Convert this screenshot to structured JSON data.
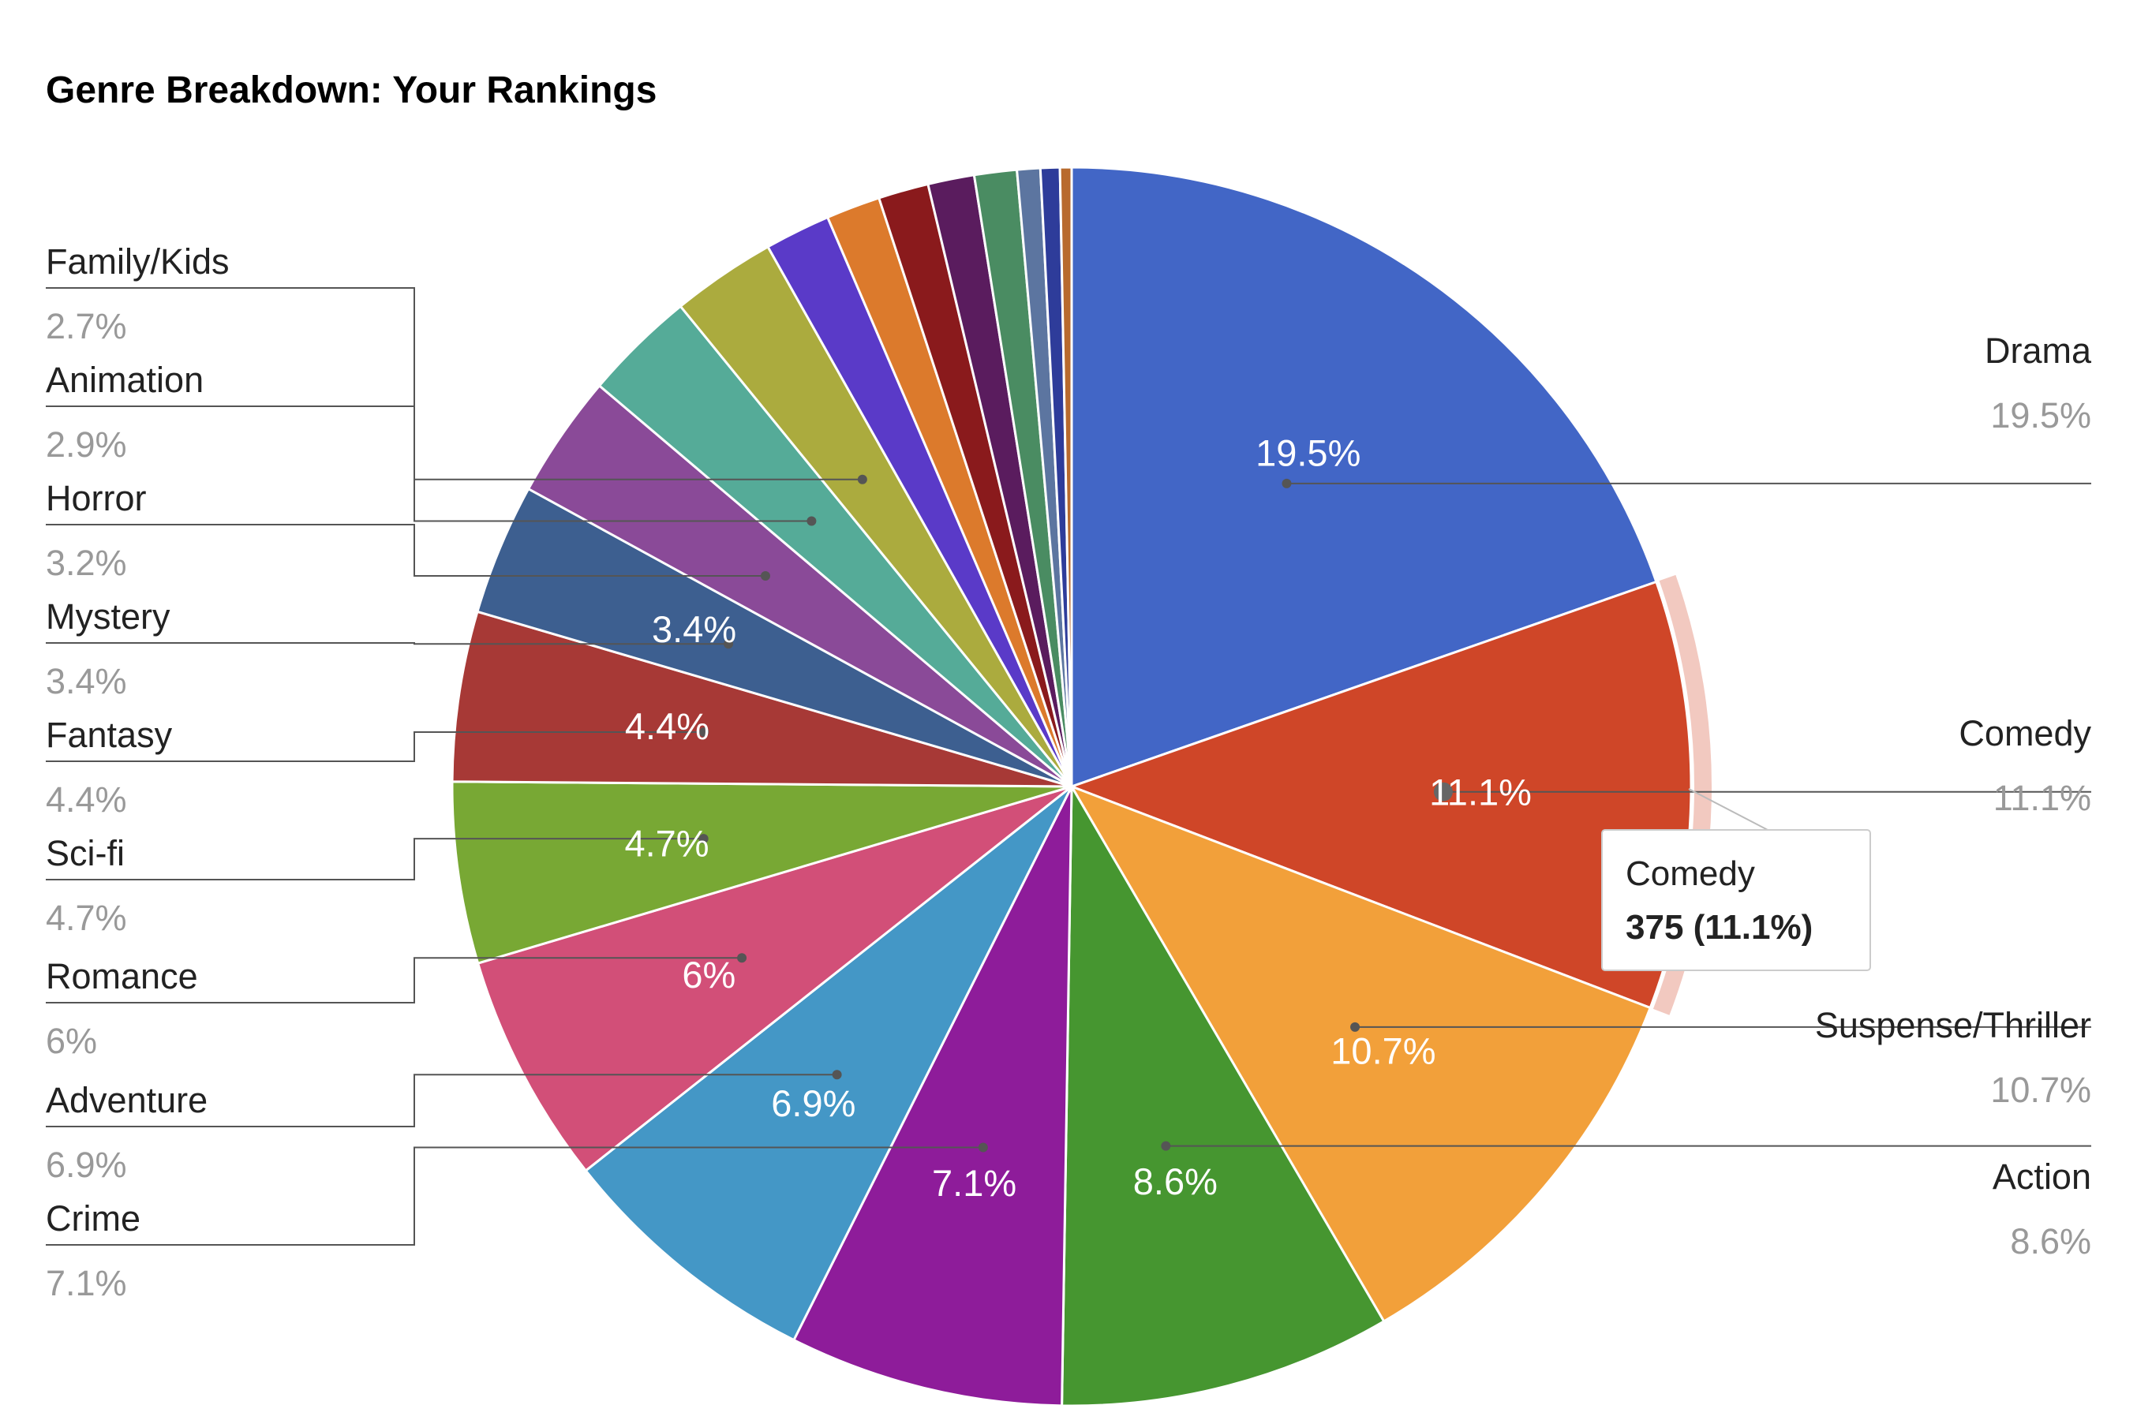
{
  "chart_data": {
    "type": "pie",
    "title": "Genre Breakdown: Your Rankings",
    "slices": [
      {
        "name": "Drama",
        "value": 19.5,
        "label": "19.5%",
        "legend_pct": "19.5%",
        "color": "#4266c6"
      },
      {
        "name": "Comedy",
        "value": 11.1,
        "label": "11.1%",
        "legend_pct": "11.1%",
        "color": "#cf4628"
      },
      {
        "name": "Suspense/Thriller",
        "value": 10.7,
        "label": "10.7%",
        "legend_pct": "10.7%",
        "color": "#f2a03a"
      },
      {
        "name": "Action",
        "value": 8.6,
        "label": "8.6%",
        "legend_pct": "8.6%",
        "color": "#469630"
      },
      {
        "name": "Crime",
        "value": 7.1,
        "label": "7.1%",
        "legend_pct": "7.1%",
        "color": "#8e1c9a"
      },
      {
        "name": "Adventure",
        "value": 6.9,
        "label": "6.9%",
        "legend_pct": "6.9%",
        "color": "#4497c6"
      },
      {
        "name": "Romance",
        "value": 6.0,
        "label": "6%",
        "legend_pct": "6%",
        "color": "#d24f78"
      },
      {
        "name": "Sci-fi",
        "value": 4.7,
        "label": "4.7%",
        "legend_pct": "4.7%",
        "color": "#78a834"
      },
      {
        "name": "Fantasy",
        "value": 4.4,
        "label": "4.4%",
        "legend_pct": "4.4%",
        "color": "#a73936"
      },
      {
        "name": "Mystery",
        "value": 3.4,
        "label": "3.4%",
        "legend_pct": "3.4%",
        "color": "#3d5f90"
      },
      {
        "name": "Horror",
        "value": 3.2,
        "label": "",
        "legend_pct": "3.2%",
        "color": "#8a4a98"
      },
      {
        "name": "Animation",
        "value": 2.9,
        "label": "",
        "legend_pct": "2.9%",
        "color": "#55ab98"
      },
      {
        "name": "Family/Kids",
        "value": 2.7,
        "label": "",
        "legend_pct": "2.7%",
        "color": "#abab3e"
      },
      {
        "name": "",
        "value": 1.7,
        "label": "",
        "legend_pct": "",
        "color": "#5a3ac8"
      },
      {
        "name": "",
        "value": 1.4,
        "label": "",
        "legend_pct": "",
        "color": "#dc7a2c"
      },
      {
        "name": "",
        "value": 1.3,
        "label": "",
        "legend_pct": "",
        "color": "#8a1a1c"
      },
      {
        "name": "",
        "value": 1.2,
        "label": "",
        "legend_pct": "",
        "color": "#5a1c5e"
      },
      {
        "name": "",
        "value": 1.1,
        "label": "",
        "legend_pct": "",
        "color": "#4a8c62"
      },
      {
        "name": "",
        "value": 0.6,
        "label": "",
        "legend_pct": "",
        "color": "#5c75a0"
      },
      {
        "name": "",
        "value": 0.5,
        "label": "",
        "legend_pct": "",
        "color": "#2e3c9a"
      },
      {
        "name": "",
        "value": 0.3,
        "label": "",
        "legend_pct": "",
        "color": "#b86a2e"
      }
    ],
    "highlighted": "Comedy",
    "tooltip": {
      "name": "Comedy",
      "value": "375 (11.1%)"
    },
    "legend": "outside-callouts"
  }
}
